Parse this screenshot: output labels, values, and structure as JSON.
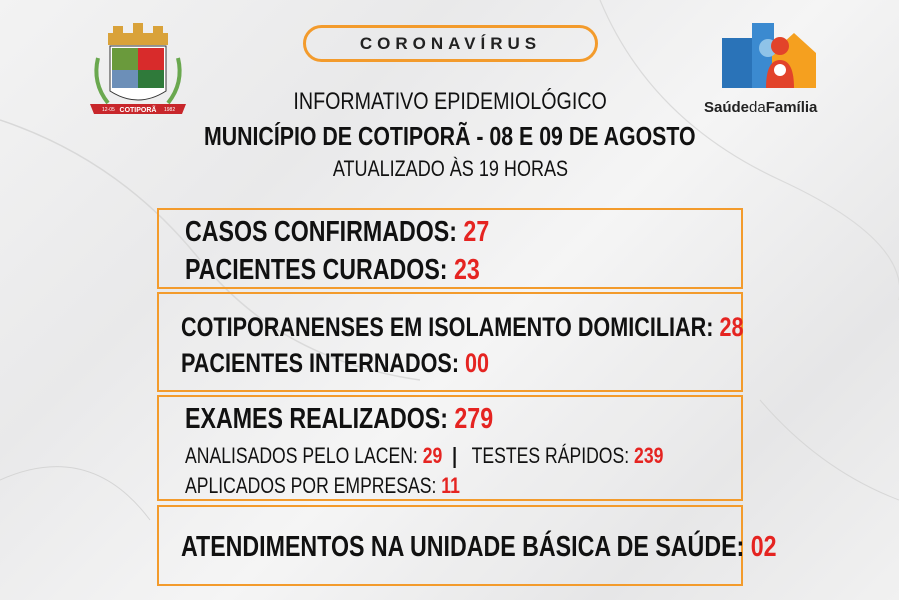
{
  "header": {
    "badge": "CORONAVÍRUS",
    "subtitle": "INFORMATIVO EPIDEMIOLÓGICO",
    "title": "MUNICÍPIO DE COTIPORÃ - 08 E 09 DE AGOSTO",
    "updated": "ATUALIZADO ÀS 19 HORAS"
  },
  "crest": {
    "name": "COTIPORÃ",
    "left_date": "12-05",
    "right_date": "1982"
  },
  "logo": {
    "text_a": "Saúde",
    "text_b": "da",
    "text_c": "Família"
  },
  "box1": {
    "confirmed_label": "CASOS CONFIRMADOS:",
    "confirmed_value": "27",
    "cured_label": "PACIENTES CURADOS:",
    "cured_value": "23"
  },
  "box2": {
    "isolation_label": "COTIPORANENSES EM ISOLAMENTO DOMICILIAR:",
    "isolation_value": "28",
    "hosp_label": "PACIENTES INTERNADOS:",
    "hosp_value": "00"
  },
  "box3": {
    "exams_label": "EXAMES REALIZADOS:",
    "exams_value": "279",
    "lacen_label": "ANALISADOS PELO LACEN:",
    "lacen_value": "29",
    "sep": "|",
    "rapid_label": "TESTES RÁPIDOS:",
    "rapid_value": "239",
    "companies_label": "APLICADOS POR EMPRESAS:",
    "companies_value": "11"
  },
  "box4": {
    "ubs_label": "ATENDIMENTOS NA UNIDADE BÁSICA DE SAÚDE:",
    "ubs_value": "02"
  },
  "colors": {
    "accent": "#f39b2c",
    "value": "#e52421"
  }
}
